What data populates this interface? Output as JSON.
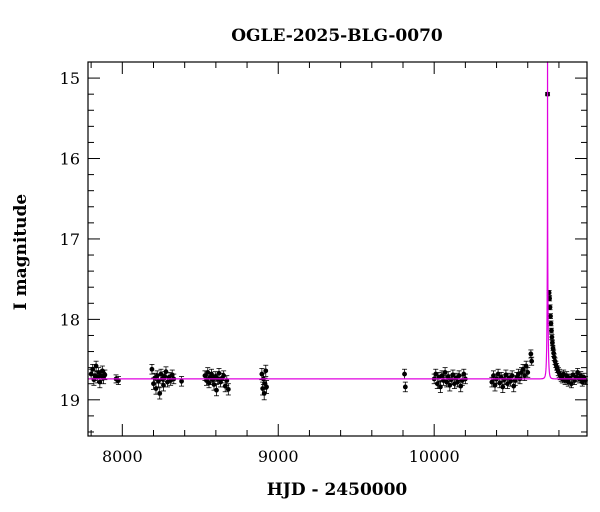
{
  "chart_data": {
    "type": "scatter",
    "title": "OGLE-2025-BLG-0070",
    "xlabel": "HJD - 2450000",
    "ylabel": "I magnitude",
    "xlim": [
      7780,
      10980
    ],
    "ylim": [
      19.45,
      14.8
    ],
    "y_inverted": true,
    "x_ticks_major": [
      8000,
      9000,
      10000
    ],
    "x_ticks_minor_step": 200,
    "y_ticks_major": [
      15,
      16,
      17,
      18,
      19
    ],
    "y_ticks_minor_step": 0.2,
    "grid": false,
    "legend": "none",
    "colors": {
      "data": "#000000",
      "model": "#e000e0"
    },
    "model": {
      "name": "",
      "baseline": 18.74,
      "t0": 10727,
      "tE": 6.5,
      "u0": 0.012,
      "fs": 1.0,
      "peak_mag": 14.6
    },
    "series": [
      {
        "name": "",
        "points": [
          {
            "x": 7800,
            "y": 18.68,
            "e": 0.06
          },
          {
            "x": 7810,
            "y": 18.62,
            "e": 0.06
          },
          {
            "x": 7818,
            "y": 18.75,
            "e": 0.07
          },
          {
            "x": 7825,
            "y": 18.7,
            "e": 0.06
          },
          {
            "x": 7832,
            "y": 18.58,
            "e": 0.06
          },
          {
            "x": 7840,
            "y": 18.72,
            "e": 0.07
          },
          {
            "x": 7848,
            "y": 18.66,
            "e": 0.06
          },
          {
            "x": 7856,
            "y": 18.78,
            "e": 0.07
          },
          {
            "x": 7864,
            "y": 18.7,
            "e": 0.06
          },
          {
            "x": 7872,
            "y": 18.64,
            "e": 0.06
          },
          {
            "x": 7880,
            "y": 18.73,
            "e": 0.07
          },
          {
            "x": 7888,
            "y": 18.69,
            "e": 0.06
          },
          {
            "x": 7960,
            "y": 18.74,
            "e": 0.05
          },
          {
            "x": 7975,
            "y": 18.76,
            "e": 0.05
          },
          {
            "x": 8190,
            "y": 18.62,
            "e": 0.06
          },
          {
            "x": 8200,
            "y": 18.8,
            "e": 0.07
          },
          {
            "x": 8208,
            "y": 18.73,
            "e": 0.06
          },
          {
            "x": 8216,
            "y": 18.86,
            "e": 0.07
          },
          {
            "x": 8224,
            "y": 18.7,
            "e": 0.06
          },
          {
            "x": 8232,
            "y": 18.77,
            "e": 0.07
          },
          {
            "x": 8240,
            "y": 18.92,
            "e": 0.07
          },
          {
            "x": 8248,
            "y": 18.68,
            "e": 0.06
          },
          {
            "x": 8256,
            "y": 18.74,
            "e": 0.06
          },
          {
            "x": 8264,
            "y": 18.82,
            "e": 0.07
          },
          {
            "x": 8272,
            "y": 18.71,
            "e": 0.06
          },
          {
            "x": 8280,
            "y": 18.65,
            "e": 0.06
          },
          {
            "x": 8290,
            "y": 18.78,
            "e": 0.06
          },
          {
            "x": 8300,
            "y": 18.72,
            "e": 0.06
          },
          {
            "x": 8310,
            "y": 18.76,
            "e": 0.06
          },
          {
            "x": 8320,
            "y": 18.69,
            "e": 0.06
          },
          {
            "x": 8330,
            "y": 18.74,
            "e": 0.06
          },
          {
            "x": 8380,
            "y": 18.77,
            "e": 0.06
          },
          {
            "x": 8530,
            "y": 18.7,
            "e": 0.06
          },
          {
            "x": 8540,
            "y": 18.76,
            "e": 0.06
          },
          {
            "x": 8548,
            "y": 18.66,
            "e": 0.06
          },
          {
            "x": 8556,
            "y": 18.79,
            "e": 0.06
          },
          {
            "x": 8564,
            "y": 18.72,
            "e": 0.06
          },
          {
            "x": 8572,
            "y": 18.68,
            "e": 0.06
          },
          {
            "x": 8580,
            "y": 18.75,
            "e": 0.06
          },
          {
            "x": 8588,
            "y": 18.81,
            "e": 0.07
          },
          {
            "x": 8596,
            "y": 18.71,
            "e": 0.06
          },
          {
            "x": 8604,
            "y": 18.88,
            "e": 0.07
          },
          {
            "x": 8612,
            "y": 18.74,
            "e": 0.06
          },
          {
            "x": 8620,
            "y": 18.67,
            "e": 0.06
          },
          {
            "x": 8630,
            "y": 18.78,
            "e": 0.06
          },
          {
            "x": 8640,
            "y": 18.73,
            "e": 0.06
          },
          {
            "x": 8650,
            "y": 18.7,
            "e": 0.06
          },
          {
            "x": 8660,
            "y": 18.83,
            "e": 0.07
          },
          {
            "x": 8670,
            "y": 18.76,
            "e": 0.06
          },
          {
            "x": 8680,
            "y": 18.87,
            "e": 0.07
          },
          {
            "x": 8895,
            "y": 18.68,
            "e": 0.07
          },
          {
            "x": 8900,
            "y": 18.86,
            "e": 0.08
          },
          {
            "x": 8905,
            "y": 18.74,
            "e": 0.07
          },
          {
            "x": 8910,
            "y": 18.92,
            "e": 0.08
          },
          {
            "x": 8915,
            "y": 18.8,
            "e": 0.07
          },
          {
            "x": 8920,
            "y": 18.64,
            "e": 0.07
          },
          {
            "x": 8925,
            "y": 18.84,
            "e": 0.08
          },
          {
            "x": 9810,
            "y": 18.68,
            "e": 0.06
          },
          {
            "x": 9815,
            "y": 18.84,
            "e": 0.06
          },
          {
            "x": 10000,
            "y": 18.74,
            "e": 0.06
          },
          {
            "x": 10010,
            "y": 18.68,
            "e": 0.06
          },
          {
            "x": 10020,
            "y": 18.8,
            "e": 0.06
          },
          {
            "x": 10030,
            "y": 18.72,
            "e": 0.06
          },
          {
            "x": 10040,
            "y": 18.84,
            "e": 0.07
          },
          {
            "x": 10050,
            "y": 18.7,
            "e": 0.06
          },
          {
            "x": 10060,
            "y": 18.76,
            "e": 0.06
          },
          {
            "x": 10070,
            "y": 18.66,
            "e": 0.06
          },
          {
            "x": 10080,
            "y": 18.78,
            "e": 0.06
          },
          {
            "x": 10090,
            "y": 18.71,
            "e": 0.06
          },
          {
            "x": 10100,
            "y": 18.82,
            "e": 0.07
          },
          {
            "x": 10110,
            "y": 18.75,
            "e": 0.06
          },
          {
            "x": 10120,
            "y": 18.69,
            "e": 0.06
          },
          {
            "x": 10130,
            "y": 18.8,
            "e": 0.06
          },
          {
            "x": 10140,
            "y": 18.73,
            "e": 0.06
          },
          {
            "x": 10150,
            "y": 18.78,
            "e": 0.06
          },
          {
            "x": 10160,
            "y": 18.7,
            "e": 0.06
          },
          {
            "x": 10170,
            "y": 18.83,
            "e": 0.07
          },
          {
            "x": 10180,
            "y": 18.76,
            "e": 0.06
          },
          {
            "x": 10190,
            "y": 18.68,
            "e": 0.06
          },
          {
            "x": 10200,
            "y": 18.74,
            "e": 0.06
          },
          {
            "x": 10370,
            "y": 18.78,
            "e": 0.06
          },
          {
            "x": 10380,
            "y": 18.7,
            "e": 0.06
          },
          {
            "x": 10390,
            "y": 18.82,
            "e": 0.07
          },
          {
            "x": 10400,
            "y": 18.74,
            "e": 0.06
          },
          {
            "x": 10410,
            "y": 18.68,
            "e": 0.06
          },
          {
            "x": 10420,
            "y": 18.79,
            "e": 0.06
          },
          {
            "x": 10430,
            "y": 18.72,
            "e": 0.06
          },
          {
            "x": 10440,
            "y": 18.84,
            "e": 0.07
          },
          {
            "x": 10450,
            "y": 18.75,
            "e": 0.06
          },
          {
            "x": 10460,
            "y": 18.69,
            "e": 0.06
          },
          {
            "x": 10470,
            "y": 18.8,
            "e": 0.06
          },
          {
            "x": 10480,
            "y": 18.73,
            "e": 0.06
          },
          {
            "x": 10490,
            "y": 18.77,
            "e": 0.06
          },
          {
            "x": 10500,
            "y": 18.7,
            "e": 0.06
          },
          {
            "x": 10510,
            "y": 18.83,
            "e": 0.07
          },
          {
            "x": 10520,
            "y": 18.76,
            "e": 0.06
          },
          {
            "x": 10530,
            "y": 18.72,
            "e": 0.06
          },
          {
            "x": 10540,
            "y": 18.68,
            "e": 0.06
          },
          {
            "x": 10550,
            "y": 18.74,
            "e": 0.06
          },
          {
            "x": 10560,
            "y": 18.66,
            "e": 0.06
          },
          {
            "x": 10570,
            "y": 18.62,
            "e": 0.06
          },
          {
            "x": 10580,
            "y": 18.7,
            "e": 0.06
          },
          {
            "x": 10590,
            "y": 18.58,
            "e": 0.06
          },
          {
            "x": 10600,
            "y": 18.66,
            "e": 0.06
          },
          {
            "x": 10620,
            "y": 18.43,
            "e": 0.05
          },
          {
            "x": 10625,
            "y": 18.52,
            "e": 0.05
          },
          {
            "x": 10727,
            "y": 15.2,
            "e": 0.02
          },
          {
            "x": 10737,
            "y": 17.67,
            "e": 0.03
          },
          {
            "x": 10740,
            "y": 17.74,
            "e": 0.03
          },
          {
            "x": 10743,
            "y": 17.85,
            "e": 0.03
          },
          {
            "x": 10746,
            "y": 17.96,
            "e": 0.03
          },
          {
            "x": 10749,
            "y": 18.05,
            "e": 0.03
          },
          {
            "x": 10752,
            "y": 18.14,
            "e": 0.03
          },
          {
            "x": 10755,
            "y": 18.22,
            "e": 0.03
          },
          {
            "x": 10758,
            "y": 18.29,
            "e": 0.03
          },
          {
            "x": 10762,
            "y": 18.36,
            "e": 0.03
          },
          {
            "x": 10766,
            "y": 18.42,
            "e": 0.04
          },
          {
            "x": 10770,
            "y": 18.47,
            "e": 0.04
          },
          {
            "x": 10775,
            "y": 18.52,
            "e": 0.04
          },
          {
            "x": 10780,
            "y": 18.56,
            "e": 0.04
          },
          {
            "x": 10785,
            "y": 18.59,
            "e": 0.04
          },
          {
            "x": 10790,
            "y": 18.62,
            "e": 0.04
          },
          {
            "x": 10796,
            "y": 18.65,
            "e": 0.05
          },
          {
            "x": 10802,
            "y": 18.67,
            "e": 0.05
          },
          {
            "x": 10808,
            "y": 18.7,
            "e": 0.05
          },
          {
            "x": 10815,
            "y": 18.72,
            "e": 0.05
          },
          {
            "x": 10822,
            "y": 18.74,
            "e": 0.05
          },
          {
            "x": 10830,
            "y": 18.68,
            "e": 0.05
          },
          {
            "x": 10840,
            "y": 18.76,
            "e": 0.05
          },
          {
            "x": 10850,
            "y": 18.7,
            "e": 0.05
          },
          {
            "x": 10860,
            "y": 18.78,
            "e": 0.05
          },
          {
            "x": 10870,
            "y": 18.73,
            "e": 0.05
          },
          {
            "x": 10880,
            "y": 18.8,
            "e": 0.05
          },
          {
            "x": 10890,
            "y": 18.69,
            "e": 0.05
          },
          {
            "x": 10900,
            "y": 18.76,
            "e": 0.05
          },
          {
            "x": 10910,
            "y": 18.72,
            "e": 0.05
          },
          {
            "x": 10920,
            "y": 18.66,
            "e": 0.05
          },
          {
            "x": 10930,
            "y": 18.74,
            "e": 0.05
          },
          {
            "x": 10940,
            "y": 18.7,
            "e": 0.05
          },
          {
            "x": 10950,
            "y": 18.78,
            "e": 0.05
          },
          {
            "x": 10960,
            "y": 18.72,
            "e": 0.05
          },
          {
            "x": 10970,
            "y": 18.76,
            "e": 0.05
          }
        ]
      }
    ]
  }
}
